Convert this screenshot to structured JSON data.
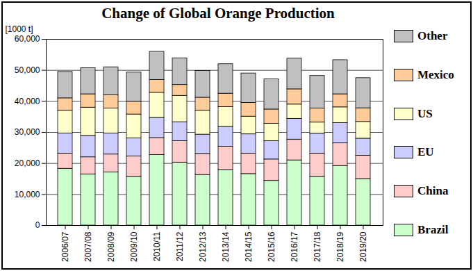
{
  "chart_data": {
    "type": "bar",
    "stacked": true,
    "title": "Change of Global Orange Production",
    "y_label": "[1000 t]",
    "categories": [
      "2006/07",
      "2007/08",
      "2008/09",
      "2009/10",
      "2010/11",
      "2011/12",
      "2012/13",
      "2013/14",
      "2014/15",
      "2015/16",
      "2016/17",
      "2017/18",
      "2018/19",
      "2019/20"
    ],
    "series": [
      {
        "name": "Brazil",
        "color": "#ccffcc",
        "values": [
          18300,
          16500,
          17100,
          15700,
          22700,
          20300,
          16300,
          17900,
          16600,
          14400,
          21000,
          15700,
          19200,
          15000
        ]
      },
      {
        "name": "China",
        "color": "#ffcccc",
        "values": [
          4900,
          5500,
          5800,
          6600,
          5500,
          6900,
          6800,
          7500,
          6600,
          6900,
          6700,
          7500,
          7300,
          7500
        ]
      },
      {
        "name": "EU",
        "color": "#ccccff",
        "values": [
          6500,
          6900,
          6800,
          5800,
          6500,
          6100,
          6200,
          6400,
          6200,
          5900,
          6700,
          6400,
          6500,
          5500
        ]
      },
      {
        "name": "US",
        "color": "#ffffcc",
        "values": [
          7300,
          9100,
          8000,
          7700,
          8100,
          8500,
          7700,
          6400,
          5700,
          5600,
          4600,
          3600,
          5100,
          5400
        ]
      },
      {
        "name": "Mexico",
        "color": "#ffcc99",
        "values": [
          4000,
          4300,
          4300,
          4100,
          4100,
          3500,
          4200,
          4300,
          4400,
          4600,
          4900,
          4500,
          4200,
          4400
        ]
      },
      {
        "name": "Other",
        "color": "#c0c0c0",
        "values": [
          8500,
          8400,
          9000,
          9400,
          9100,
          8600,
          8600,
          9500,
          9500,
          9700,
          9900,
          10500,
          11000,
          9700
        ]
      }
    ],
    "ylim": [
      0,
      60000
    ],
    "yticks": [
      0,
      {
        "value": 10000,
        "label": "10,000"
      },
      {
        "value": 20000,
        "label": "20,000"
      },
      {
        "value": 30000,
        "label": "30,000"
      },
      {
        "value": 40000,
        "label": "40,000"
      },
      {
        "value": 50000,
        "label": "50,000"
      },
      {
        "value": 60000,
        "label": "60,000"
      }
    ],
    "grid": true,
    "legend": "right"
  }
}
